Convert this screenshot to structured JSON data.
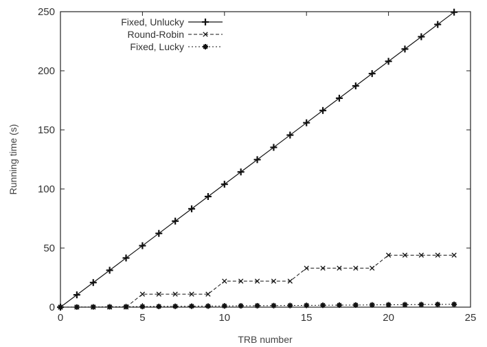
{
  "chart_data": {
    "type": "line",
    "title": "",
    "xlabel": "TRB number",
    "ylabel": "Running time (s)",
    "xlim": [
      0,
      25
    ],
    "ylim": [
      0,
      250
    ],
    "x_ticks": [
      "0",
      "5",
      "10",
      "15",
      "20",
      "25"
    ],
    "y_ticks": [
      "0",
      "50",
      "100",
      "150",
      "200",
      "250"
    ],
    "grid": false,
    "legend_position": "top-left",
    "x": [
      0,
      1,
      2,
      3,
      4,
      5,
      6,
      7,
      8,
      9,
      10,
      11,
      12,
      13,
      14,
      15,
      16,
      17,
      18,
      19,
      20,
      21,
      22,
      23,
      24
    ],
    "series": [
      {
        "name": "Fixed, Unlucky",
        "line_style": "solid",
        "marker": "plus",
        "values": [
          0,
          10.4,
          20.8,
          31.2,
          41.6,
          52,
          62.4,
          72.8,
          83.2,
          93.6,
          104,
          114.4,
          124.8,
          135.2,
          145.6,
          156,
          166.4,
          176.8,
          187.2,
          197.6,
          208,
          218.4,
          228.8,
          239.2,
          249.6
        ]
      },
      {
        "name": "Round-Robin",
        "line_style": "dashed",
        "marker": "x",
        "values": [
          0,
          0,
          0,
          0,
          0,
          11,
          11,
          11,
          11,
          11,
          22,
          22,
          22,
          22,
          22,
          33,
          33,
          33,
          33,
          33,
          44,
          44,
          44,
          44,
          44
        ]
      },
      {
        "name": "Fixed, Lucky",
        "line_style": "dotted",
        "marker": "star",
        "values": [
          0,
          0.1,
          0.2,
          0.3,
          0.4,
          0.5,
          0.6,
          0.7,
          0.8,
          0.9,
          1.0,
          1.1,
          1.2,
          1.3,
          1.4,
          1.5,
          1.6,
          1.7,
          1.8,
          1.9,
          2.0,
          2.1,
          2.2,
          2.3,
          2.4
        ]
      }
    ]
  }
}
